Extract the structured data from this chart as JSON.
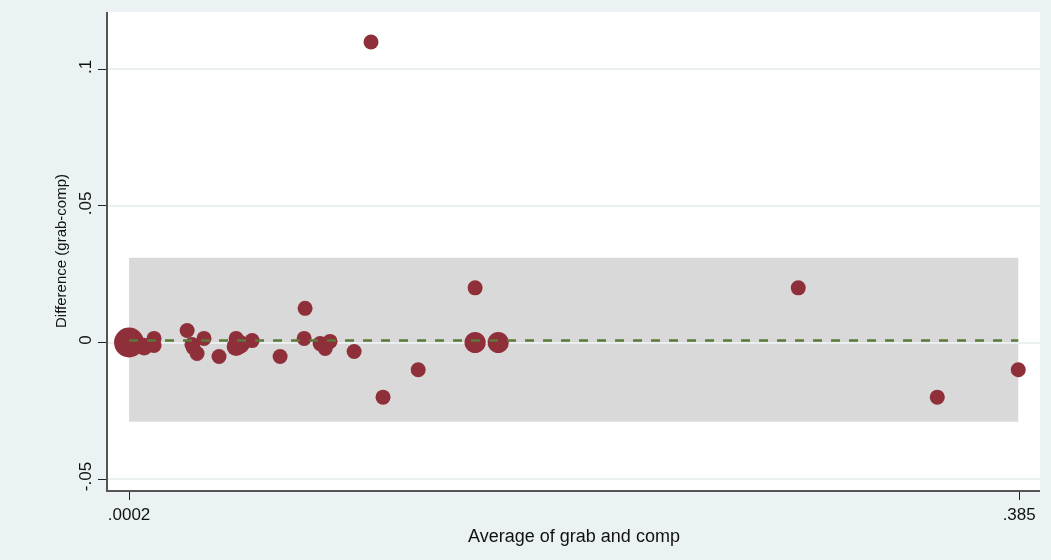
{
  "chart_data": {
    "type": "bubble",
    "xlabel": "Average of grab and comp",
    "ylabel": "Difference (grab-comp)",
    "x": [
      0.0002,
      0.0067,
      0.011,
      0.011,
      0.0253,
      0.0274,
      0.0279,
      0.0296,
      0.0326,
      0.0391,
      0.0465,
      0.0465,
      0.0482,
      0.0534,
      0.0655,
      0.0763,
      0.0759,
      0.0828,
      0.085,
      0.0871,
      0.0975,
      0.1048,
      0.11,
      0.1252,
      0.1498,
      0.1498,
      0.1598,
      0.2895,
      0.3496,
      0.3846
    ],
    "series": [
      {
        "color": "#8e2f3a",
        "values": [
          0,
          -0.0015,
          0.0015,
          -0.0011,
          0.0044,
          -0.0007,
          -0.0018,
          -0.004,
          0.0015,
          -0.0051,
          0.0015,
          -0.0015,
          -0.0007,
          0.0007,
          -0.0051,
          0.0125,
          0.0015,
          -0.0004,
          -0.0022,
          0.0004,
          -0.0033,
          0.11,
          -0.02,
          -0.01,
          0.02,
          0,
          0,
          0.02,
          -0.02,
          -0.01
        ],
        "sizes": [
          1,
          0.35,
          0.25,
          0.25,
          0.25,
          0.25,
          0.25,
          0.25,
          0.25,
          0.25,
          0.25,
          0.4,
          0.4,
          0.25,
          0.25,
          0.25,
          0.25,
          0.25,
          0.25,
          0.25,
          0.25,
          0.25,
          0.25,
          0.25,
          0.25,
          0.5,
          0.5,
          0.25,
          0.25,
          0.25
        ]
      }
    ],
    "xlim": [
      -0.0089,
      0.394
    ],
    "xticks": [
      {
        "value": 0.0002,
        "label": ".0002"
      },
      {
        "value": 0.385,
        "label": ".385"
      }
    ],
    "ylim": [
      -0.054,
      0.121
    ],
    "yticks": [
      {
        "value": -0.05,
        "label": "-.05"
      },
      {
        "value": 0,
        "label": "0"
      },
      {
        "value": 0.05,
        "label": ".05"
      },
      {
        "value": 0.1,
        "label": ".1"
      }
    ],
    "grid": "y",
    "bands": [
      {
        "axis": "y",
        "from": -0.029,
        "to": 0.031,
        "color": "#d9d9d9"
      }
    ],
    "ref_lines": [
      {
        "axis": "y",
        "value": 0.0007,
        "color": "#5a7a3a",
        "line_style": "dashed"
      }
    ]
  }
}
